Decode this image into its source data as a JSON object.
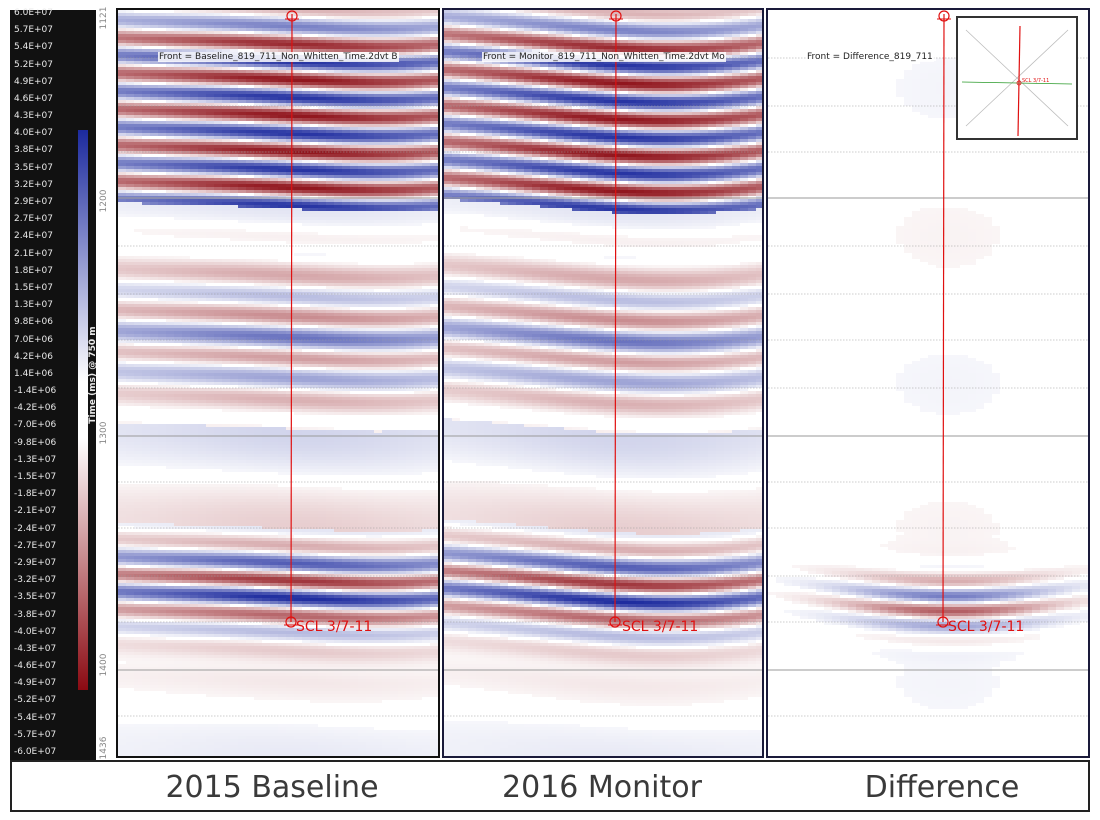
{
  "colorbar": {
    "ticks": [
      "6.0E+07",
      "5.7E+07",
      "5.4E+07",
      "5.2E+07",
      "4.9E+07",
      "4.6E+07",
      "4.3E+07",
      "4.0E+07",
      "3.8E+07",
      "3.5E+07",
      "3.2E+07",
      "2.9E+07",
      "2.7E+07",
      "2.4E+07",
      "2.1E+07",
      "1.8E+07",
      "1.5E+07",
      "1.3E+07",
      "9.8E+06",
      "7.0E+06",
      "4.2E+06",
      "1.4E+06",
      "-1.4E+06",
      "-4.2E+06",
      "-7.0E+06",
      "-9.8E+06",
      "-1.3E+07",
      "-1.5E+07",
      "-1.8E+07",
      "-2.1E+07",
      "-2.4E+07",
      "-2.7E+07",
      "-2.9E+07",
      "-3.2E+07",
      "-3.5E+07",
      "-3.8E+07",
      "-4.0E+07",
      "-4.3E+07",
      "-4.6E+07",
      "-4.9E+07",
      "-5.2E+07",
      "-5.4E+07",
      "-5.7E+07",
      "-6.0E+07"
    ],
    "axis_label": "Time (ms) @ 750 m",
    "positive_color": "#1c2a9e",
    "negative_color": "#8b0a12"
  },
  "time_axis": {
    "ticks": [
      {
        "label": "1121",
        "value": 1121
      },
      {
        "label": "1200",
        "value": 1200
      },
      {
        "label": "1300",
        "value": 1300
      },
      {
        "label": "1400",
        "value": 1400
      },
      {
        "label": "1436",
        "value": 1436
      }
    ]
  },
  "panels": [
    {
      "id": "baseline",
      "front_label": "Front = Baseline_819_711_Non_Whitten_Time.2dvt  B",
      "well": "SCL 3/7-11",
      "caption": "2015 Baseline",
      "amplitude": 1.0
    },
    {
      "id": "monitor",
      "front_label": "Front = Monitor_819_711_Non_Whitten_Time.2dvt  Mo",
      "well": "SCL 3/7-11",
      "caption": "2016 Monitor",
      "amplitude": 1.0
    },
    {
      "id": "difference",
      "front_label": "Front = Difference_819_711",
      "well": "SCL 3/7-11",
      "caption": "Difference",
      "amplitude": 0.25
    }
  ],
  "inset": {
    "well_label": "SCL 3/7-11"
  },
  "colors": {
    "well_line": "#e01010",
    "gridline": "#9a9a9a"
  }
}
